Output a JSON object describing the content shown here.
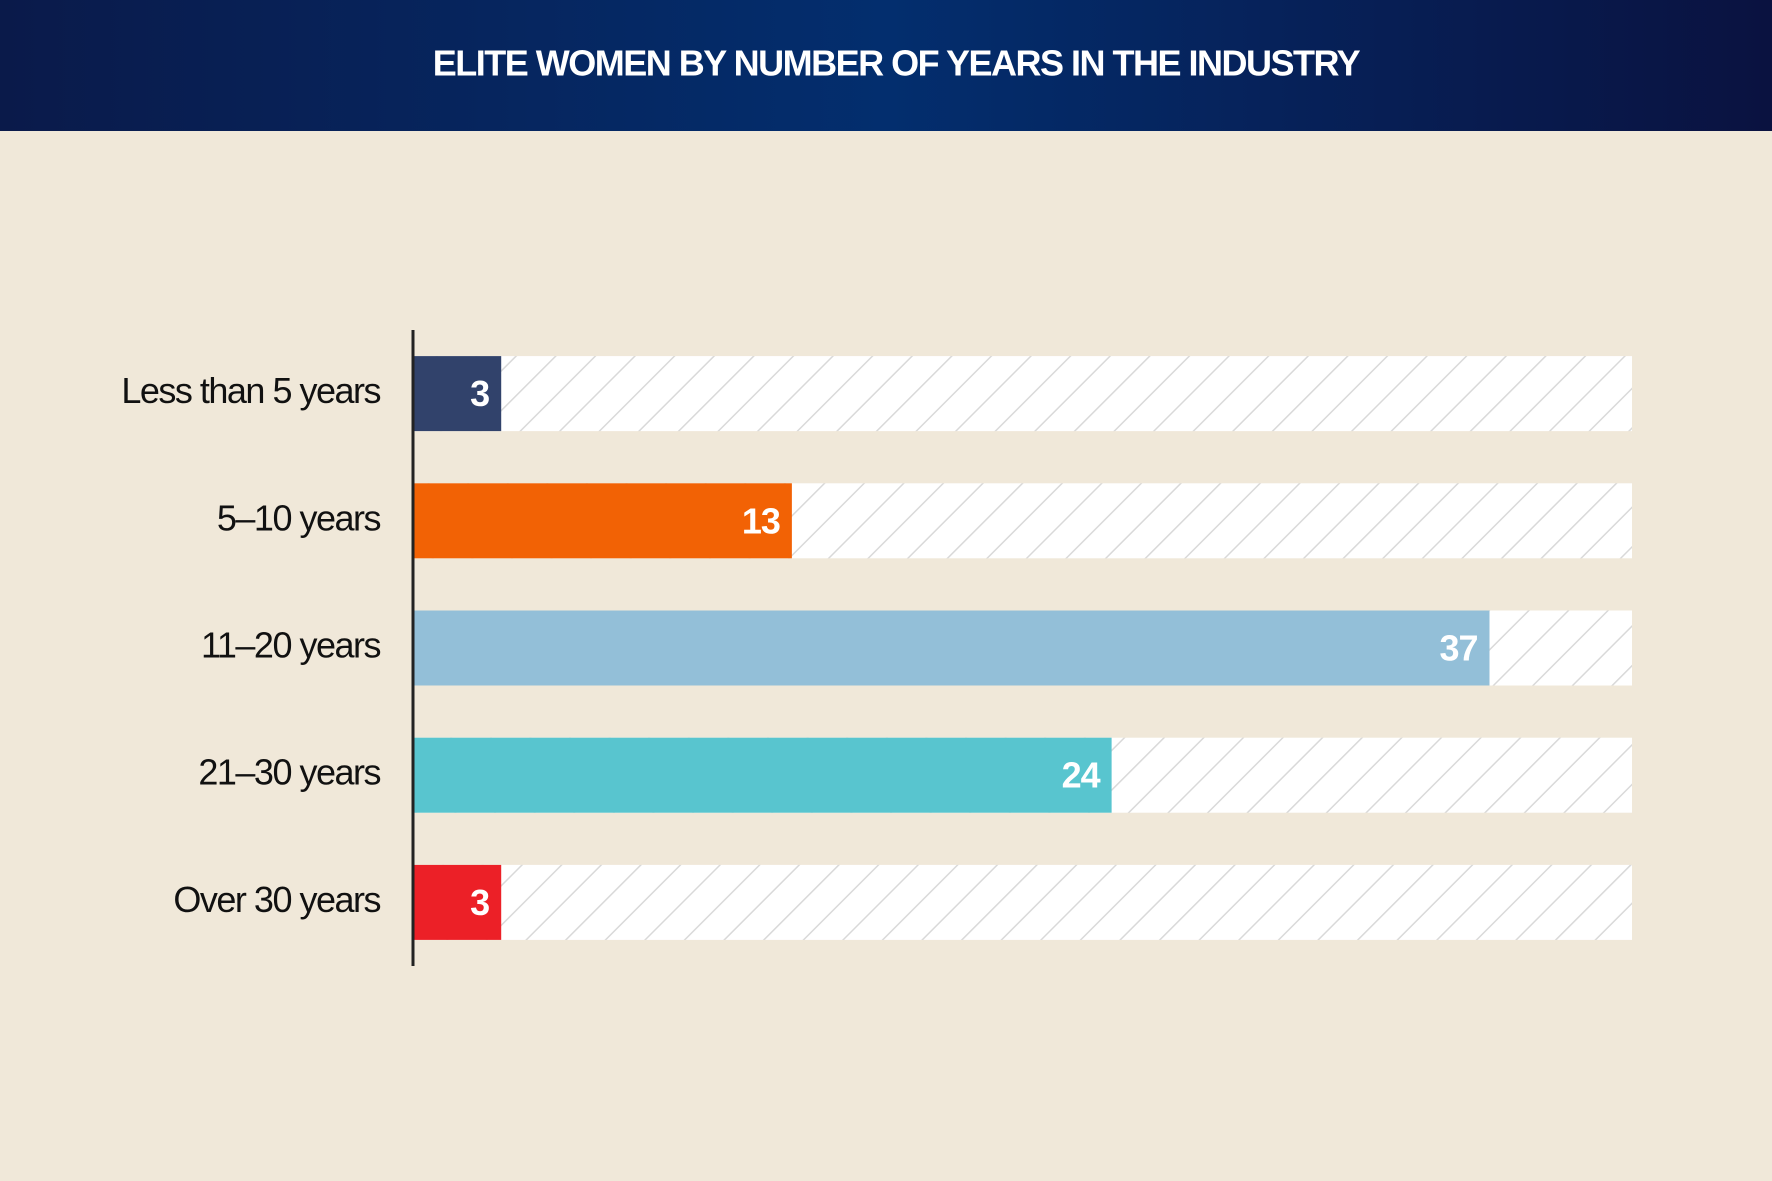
{
  "chart_data": {
    "type": "bar",
    "orientation": "horizontal",
    "title": "ELITE WOMEN BY NUMBER OF YEARS IN THE INDUSTRY",
    "categories": [
      "Less than 5 years",
      "5–10 years",
      "11–20 years",
      "21–30 years",
      "Over 30 years"
    ],
    "values": [
      3,
      13,
      37,
      24,
      3
    ],
    "colors": [
      "#31426b",
      "#f26205",
      "#93bfd8",
      "#58c5cf",
      "#ec2027"
    ]
  }
}
